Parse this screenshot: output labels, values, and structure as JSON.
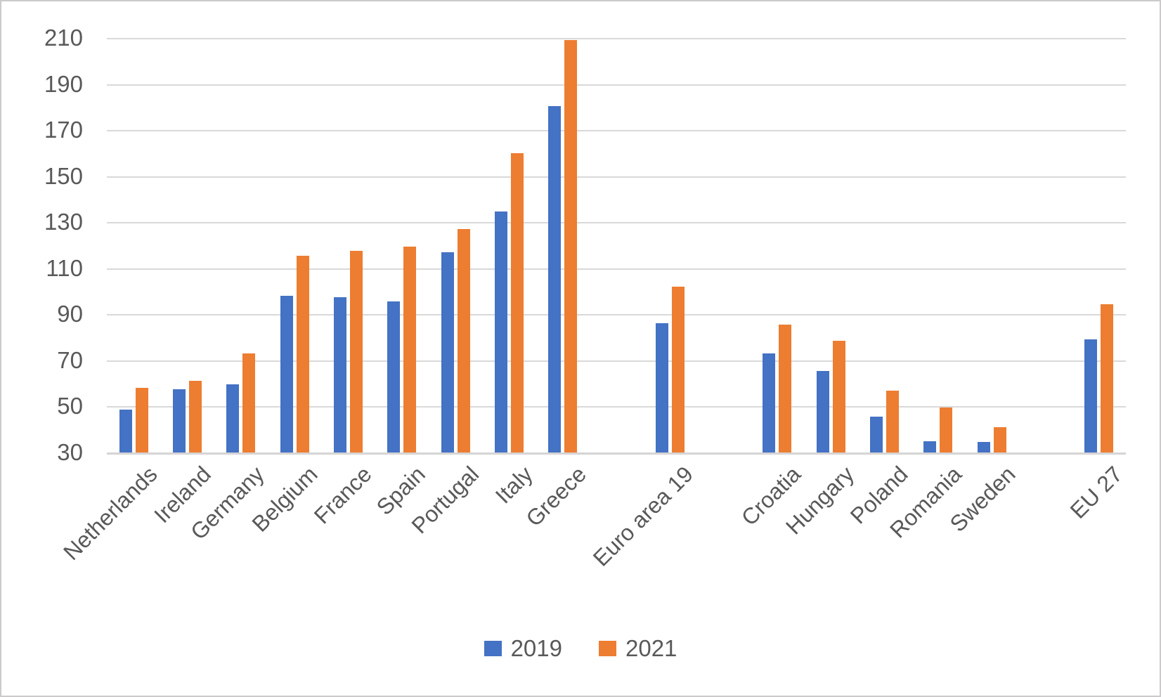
{
  "chart_data": {
    "type": "bar",
    "title": "",
    "xlabel": "",
    "ylabel": "",
    "categories": [
      "Netherlands",
      "Ireland",
      "Germany",
      "Belgium",
      "France",
      "Spain",
      "Portugal",
      "Italy",
      "Greece",
      "Euro area 19",
      "Croatia",
      "Hungary",
      "Poland",
      "Romania",
      "Sweden",
      "EU 27"
    ],
    "series": [
      {
        "name": "2019",
        "color": "#4472C4",
        "values": [
          48.5,
          57.5,
          59.5,
          98,
          97.5,
          95.5,
          117,
          134.5,
          180.5,
          86,
          73,
          65.5,
          45.5,
          35,
          34.5,
          79
        ]
      },
      {
        "name": "2021",
        "color": "#ED7D31",
        "values": [
          58,
          61,
          73,
          115.5,
          117.5,
          119.5,
          127,
          160,
          209,
          102,
          85.5,
          78.5,
          57,
          49.5,
          41,
          94.5
        ]
      }
    ],
    "ylim": [
      30,
      210
    ],
    "ytick_step": 20,
    "ytick_labels": [
      "30",
      "50",
      "70",
      "90",
      "110",
      "130",
      "150",
      "170",
      "190",
      "210"
    ],
    "grid": true,
    "gap_slots_after": [
      "Greece",
      "Euro area 19",
      "Sweden"
    ],
    "legend_position": "bottom",
    "legend_labels": [
      "2019",
      "2021"
    ],
    "colors": {
      "gridline": "#d9d9d9",
      "axis_line": "#d6d4d4",
      "text": "#595959",
      "frame_border": "#cccaca",
      "background": "#ffffff"
    }
  }
}
